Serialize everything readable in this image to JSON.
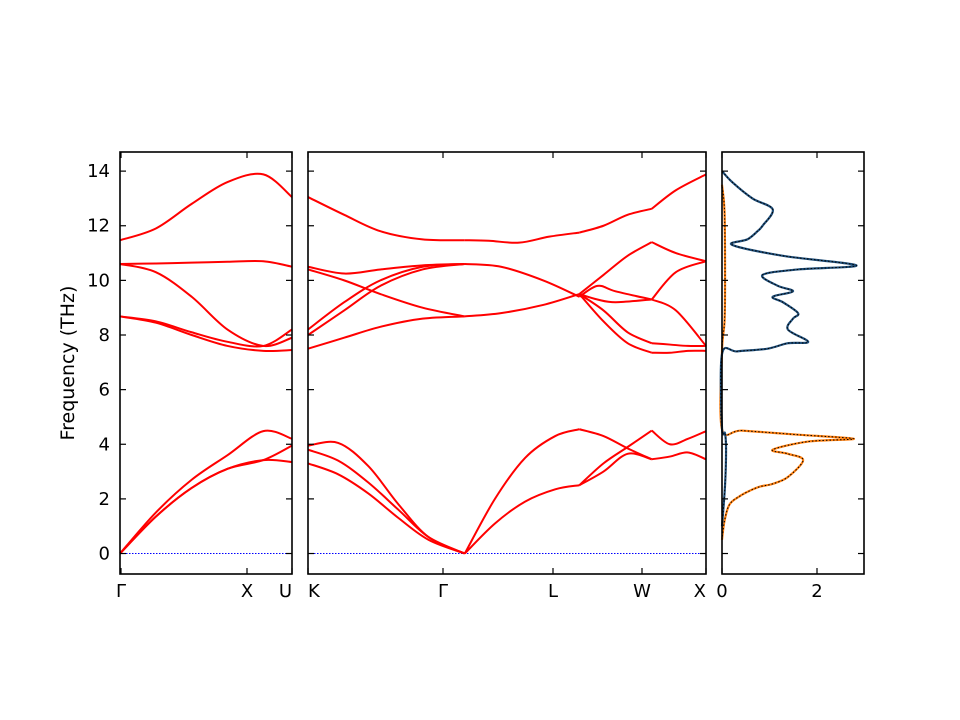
{
  "chart_data": [
    {
      "type": "line",
      "panel": "band-structure-left",
      "x_ticks": [
        "Γ",
        "X",
        "U"
      ],
      "ylabel": "Frequency (THz)",
      "ylim": [
        -0.75,
        14.7
      ],
      "y_ticks": [
        0,
        2,
        4,
        6,
        8,
        10,
        12,
        14
      ],
      "grid": false,
      "series": [
        {
          "x": [
            0,
            0.25,
            0.5,
            0.75,
            1,
            1.2
          ],
          "y": [
            0,
            1.5,
            2.7,
            3.6,
            4.48,
            4.2
          ]
        },
        {
          "x": [
            0,
            0.25,
            0.5,
            0.75,
            1,
            1.2
          ],
          "y": [
            0,
            1.35,
            2.4,
            3.1,
            3.42,
            3.95
          ]
        },
        {
          "x": [
            0,
            0.25,
            0.5,
            0.75,
            1,
            1.2
          ],
          "y": [
            0,
            1.35,
            2.4,
            3.1,
            3.42,
            3.35
          ]
        },
        {
          "x": [
            0,
            0.25,
            0.5,
            0.75,
            1,
            1.2
          ],
          "y": [
            8.68,
            8.45,
            8.0,
            7.6,
            7.42,
            7.45
          ]
        },
        {
          "x": [
            0,
            0.25,
            0.5,
            0.75,
            1,
            1.2
          ],
          "y": [
            8.68,
            8.5,
            8.1,
            7.75,
            7.6,
            8.2
          ]
        },
        {
          "x": [
            0,
            0.25,
            0.5,
            0.75,
            1,
            1.2
          ],
          "y": [
            10.6,
            10.3,
            9.4,
            8.2,
            7.6,
            7.9
          ]
        },
        {
          "x": [
            0,
            0.25,
            0.5,
            0.75,
            1,
            1.2
          ],
          "y": [
            10.6,
            10.62,
            10.65,
            10.68,
            10.7,
            10.5
          ]
        },
        {
          "x": [
            0,
            0.25,
            0.5,
            0.75,
            1,
            1.2
          ],
          "y": [
            11.47,
            11.9,
            12.8,
            13.6,
            13.88,
            13.05
          ]
        }
      ]
    },
    {
      "type": "line",
      "panel": "band-structure-right",
      "x_ticks": [
        "K",
        "Γ",
        "L",
        "W",
        "X"
      ],
      "ylim": [
        -0.75,
        14.7
      ],
      "grid": false,
      "series": [
        {
          "x": [
            0,
            0.5,
            1.0,
            1.5,
            2.0,
            2.6
          ],
          "y": [
            3.95,
            4.05,
            3.2,
            1.8,
            0.6,
            0
          ]
        },
        {
          "x": [
            0,
            0.5,
            1.0,
            1.5,
            2.0,
            2.6
          ],
          "y": [
            3.8,
            3.4,
            2.6,
            1.6,
            0.6,
            0
          ]
        },
        {
          "x": [
            0,
            0.5,
            1.0,
            1.5,
            2.0,
            2.6
          ],
          "y": [
            3.3,
            2.9,
            2.2,
            1.3,
            0.5,
            0
          ]
        },
        {
          "x": [
            2.6,
            3.1,
            3.6,
            4.1,
            4.5
          ],
          "y": [
            0,
            2.0,
            3.5,
            4.3,
            4.55
          ]
        },
        {
          "x": [
            2.6,
            3.1,
            3.6,
            4.1,
            4.5
          ],
          "y": [
            0,
            1.1,
            1.9,
            2.35,
            2.5
          ]
        },
        {
          "x": [
            4.5,
            4.9,
            5.3,
            5.7
          ],
          "y": [
            4.55,
            4.3,
            3.85,
            3.45
          ]
        },
        {
          "x": [
            4.5,
            4.9,
            5.3,
            5.7
          ],
          "y": [
            2.5,
            3.3,
            3.9,
            4.5
          ]
        },
        {
          "x": [
            4.5,
            4.9,
            5.3,
            5.7
          ],
          "y": [
            2.5,
            3.0,
            3.65,
            3.45
          ]
        },
        {
          "x": [
            0,
            0.6,
            1.2,
            1.9,
            2.6
          ],
          "y": [
            7.5,
            7.9,
            8.3,
            8.6,
            8.68
          ]
        },
        {
          "x": [
            0,
            0.6,
            1.2,
            1.9,
            2.6
          ],
          "y": [
            8.0,
            8.9,
            9.8,
            10.4,
            10.6
          ]
        },
        {
          "x": [
            0,
            0.6,
            1.2,
            1.9,
            2.6
          ],
          "y": [
            8.2,
            9.2,
            10.0,
            10.5,
            10.6
          ]
        },
        {
          "x": [
            0,
            0.6,
            1.2,
            1.9,
            2.6
          ],
          "y": [
            10.4,
            10.0,
            9.5,
            9.0,
            8.68
          ]
        },
        {
          "x": [
            0,
            0.6,
            1.2,
            1.9,
            2.6
          ],
          "y": [
            10.5,
            10.25,
            10.4,
            10.55,
            10.6
          ]
        },
        {
          "x": [
            0,
            0.6,
            1.2,
            1.9,
            2.6
          ],
          "y": [
            13.05,
            12.4,
            11.8,
            11.5,
            11.47
          ]
        },
        {
          "x": [
            2.6,
            3.2,
            3.9,
            4.5
          ],
          "y": [
            8.68,
            8.8,
            9.1,
            9.5
          ]
        },
        {
          "x": [
            2.6,
            3.2,
            3.9,
            4.5
          ],
          "y": [
            10.6,
            10.5,
            10.0,
            9.4
          ]
        },
        {
          "x": [
            2.6,
            3.0,
            3.5,
            4.0,
            4.5
          ],
          "y": [
            11.47,
            11.45,
            11.38,
            11.6,
            11.75
          ]
        },
        {
          "x": [
            4.5,
            4.8,
            5.1,
            5.7
          ],
          "y": [
            9.4,
            9.8,
            9.6,
            9.3
          ]
        },
        {
          "x": [
            4.5,
            4.8,
            5.1,
            5.7
          ],
          "y": [
            9.5,
            9.3,
            9.2,
            9.3
          ]
        },
        {
          "x": [
            4.5,
            4.9,
            5.3,
            5.7
          ],
          "y": [
            9.5,
            8.5,
            7.7,
            7.35
          ]
        },
        {
          "x": [
            4.5,
            4.9,
            5.3,
            5.7
          ],
          "y": [
            9.5,
            8.9,
            8.1,
            7.7
          ]
        },
        {
          "x": [
            4.5,
            4.9,
            5.3,
            5.7
          ],
          "y": [
            9.5,
            10.2,
            10.9,
            11.4
          ]
        },
        {
          "x": [
            4.5,
            4.9,
            5.3,
            5.7
          ],
          "y": [
            11.75,
            12.0,
            12.4,
            12.62
          ]
        },
        {
          "x": [
            5.7,
            6.0,
            6.3,
            6.6
          ],
          "y": [
            3.45,
            3.55,
            3.7,
            3.45
          ]
        },
        {
          "x": [
            5.7,
            6.0,
            6.3,
            6.6
          ],
          "y": [
            4.5,
            4.0,
            4.2,
            4.48
          ]
        },
        {
          "x": [
            5.7,
            6.0,
            6.3,
            6.6
          ],
          "y": [
            7.35,
            7.35,
            7.42,
            7.42
          ]
        },
        {
          "x": [
            5.7,
            6.0,
            6.3,
            6.6
          ],
          "y": [
            7.7,
            7.65,
            7.6,
            7.6
          ]
        },
        {
          "x": [
            5.7,
            6.1,
            6.6
          ],
          "y": [
            9.3,
            8.9,
            7.6
          ]
        },
        {
          "x": [
            5.7,
            6.1,
            6.6
          ],
          "y": [
            9.3,
            10.3,
            10.7
          ]
        },
        {
          "x": [
            5.7,
            6.1,
            6.6
          ],
          "y": [
            11.4,
            11.0,
            10.7
          ]
        },
        {
          "x": [
            5.7,
            6.1,
            6.6
          ],
          "y": [
            12.62,
            13.3,
            13.88
          ]
        }
      ]
    },
    {
      "type": "line",
      "panel": "density-of-states",
      "x_ticks": [
        0,
        2
      ],
      "xlim": [
        0,
        2.8
      ],
      "ylim": [
        -0.75,
        14.7
      ],
      "grid": false,
      "colors": {
        "blue": "#1f4e79",
        "orange": "#ff7f0e"
      },
      "series": [
        {
          "color": "orange",
          "x": [
            0,
            0.05,
            0.15,
            0.35,
            0.55,
            0.75,
            1.0,
            1.3,
            1.6,
            1.3,
            1.0,
            1.7,
            2.6,
            1.5,
            0.4,
            0,
            0,
            0.05,
            0.06,
            0.05,
            0
          ],
          "y": [
            0.5,
            1.2,
            1.8,
            2.1,
            2.3,
            2.45,
            2.55,
            2.8,
            3.42,
            3.65,
            3.8,
            4.1,
            4.2,
            4.35,
            4.5,
            4.55,
            7.4,
            8.5,
            10.0,
            12.5,
            13.5
          ]
        },
        {
          "color": "blue",
          "x": [
            0,
            0.06,
            0.08,
            0.06,
            0,
            0,
            0.3,
            0.9,
            1.3,
            1.7,
            1.3,
            1.4,
            1.5,
            1.2,
            1.0,
            1.4,
            1.1,
            0.8,
            1.5,
            2.65,
            1.2,
            0.2,
            0.5,
            0.7,
            0.8,
            1.0,
            0.6,
            0.2,
            0
          ],
          "y": [
            1.0,
            2.5,
            3.8,
            4.4,
            4.6,
            7.3,
            7.4,
            7.5,
            7.7,
            7.75,
            8.2,
            8.6,
            8.8,
            9.2,
            9.4,
            9.6,
            9.8,
            10.2,
            10.4,
            10.55,
            10.9,
            11.3,
            11.5,
            11.8,
            12.0,
            12.6,
            13.0,
            13.6,
            14.0
          ]
        }
      ]
    }
  ]
}
